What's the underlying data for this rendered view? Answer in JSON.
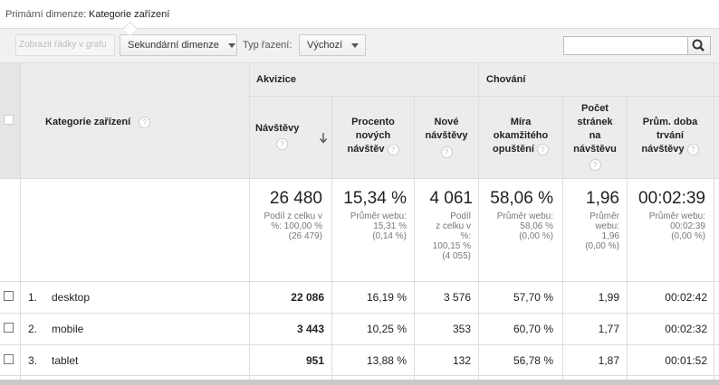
{
  "primary_dimension": {
    "label": "Primární dimenze:",
    "value": "Kategorie zařízení"
  },
  "toolbar": {
    "plot_rows_label": "Zobrazit řádky v grafu",
    "secondary_dimension_label": "Sekundární dimenze",
    "sort_type_label": "Typ řazení:",
    "sort_type_value": "Výchozí",
    "search_value": ""
  },
  "table": {
    "groups": {
      "acquisition": "Akvizice",
      "behavior": "Chování"
    },
    "dimension_header": "Kategorie zařízení",
    "columns": [
      {
        "line1": "Návštěvy",
        "line2": "",
        "line3": "",
        "line4": ""
      },
      {
        "line1": "Procento",
        "line2": "nových",
        "line3": "návštěv",
        "line4": ""
      },
      {
        "line1": "Nové",
        "line2": "návštěvy",
        "line3": "",
        "line4": ""
      },
      {
        "line1": "Míra",
        "line2": "okamžitého",
        "line3": "opuštění",
        "line4": ""
      },
      {
        "line1": "Počet",
        "line2": "stránek",
        "line3": "na",
        "line4": "návštěvu"
      },
      {
        "line1": "Prům. doba",
        "line2": "trvání",
        "line3": "návštěvy",
        "line4": ""
      }
    ],
    "totals": [
      {
        "value": "26 480",
        "l1": "Podíl z celku v",
        "l2": "%: 100,00 %",
        "l3": "(26 479)",
        "l4": ""
      },
      {
        "value": "15,34 %",
        "l1": "Průměr webu:",
        "l2": "15,31 %",
        "l3": "(0,14 %)",
        "l4": ""
      },
      {
        "value": "4 061",
        "l1": "Podíl",
        "l2": "z celku v",
        "l3": "%:",
        "l4": "100,15 %",
        "l5": "(4 055)"
      },
      {
        "value": "58,06 %",
        "l1": "Průměr webu:",
        "l2": "58,06 %",
        "l3": "(0,00 %)",
        "l4": ""
      },
      {
        "value": "1,96",
        "l1": "Průměr",
        "l2": "webu:",
        "l3": "1,96",
        "l4": "(0,00 %)"
      },
      {
        "value": "00:02:39",
        "l1": "Průměr webu:",
        "l2": "00:02:39",
        "l3": "(0,00 %)",
        "l4": ""
      }
    ],
    "rows": [
      {
        "index": "1.",
        "name": "desktop",
        "cells": [
          "22 086",
          "16,19 %",
          "3 576",
          "57,70 %",
          "1,99",
          "00:02:42"
        ]
      },
      {
        "index": "2.",
        "name": "mobile",
        "cells": [
          "3 443",
          "10,25 %",
          "353",
          "60,70 %",
          "1,77",
          "00:02:32"
        ]
      },
      {
        "index": "3.",
        "name": "tablet",
        "cells": [
          "951",
          "13,88 %",
          "132",
          "56,78 %",
          "1,87",
          "00:01:52"
        ]
      }
    ]
  }
}
